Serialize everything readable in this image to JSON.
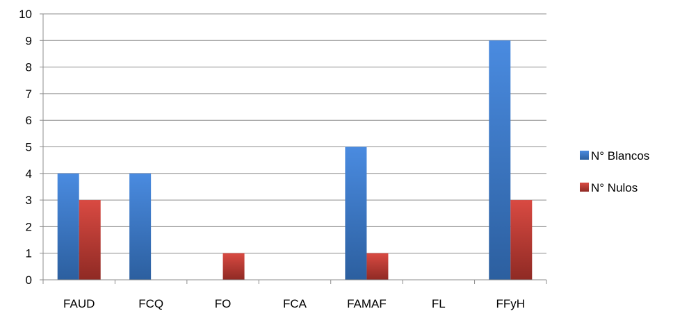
{
  "chart_data": {
    "type": "bar",
    "categories": [
      "FAUD",
      "FCQ",
      "FO",
      "FCA",
      "FAMAF",
      "FL",
      "FFyH"
    ],
    "series": [
      {
        "name": "N° Blancos",
        "values": [
          4,
          4,
          0,
          0,
          5,
          0,
          9
        ],
        "color": "#3d7cc9"
      },
      {
        "name": "N° Nulos",
        "values": [
          3,
          0,
          1,
          0,
          1,
          0,
          3
        ],
        "color": "#c0392b"
      }
    ],
    "ylim": [
      0,
      10
    ],
    "yticks": [
      "0",
      "1",
      "2",
      "3",
      "4",
      "5",
      "6",
      "7",
      "8",
      "9",
      "10"
    ],
    "grid": true,
    "legend_position": "right"
  }
}
